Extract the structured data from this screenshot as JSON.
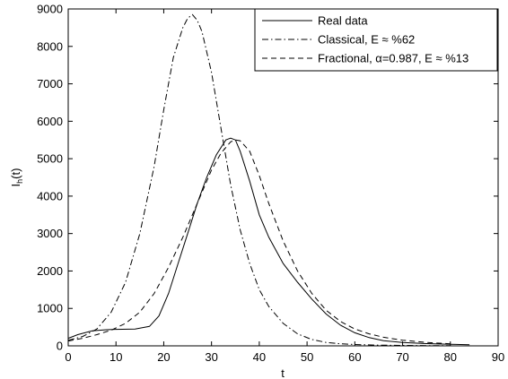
{
  "chart_data": {
    "type": "line",
    "xlabel": "t",
    "ylabel": "I_h(t)",
    "xlim": [
      0,
      90
    ],
    "ylim": [
      0,
      9000
    ],
    "xticks": [
      0,
      10,
      20,
      30,
      40,
      50,
      60,
      70,
      80,
      90
    ],
    "yticks": [
      0,
      1000,
      2000,
      3000,
      4000,
      5000,
      6000,
      7000,
      8000,
      9000
    ],
    "legend_position": "top-right",
    "series": [
      {
        "name": "Real data",
        "style": "solid",
        "x": [
          0,
          2,
          5,
          8,
          10,
          14,
          17,
          19,
          21,
          23,
          25,
          27,
          29,
          31,
          33,
          34,
          35,
          36,
          38,
          40,
          42,
          45,
          48,
          51,
          54,
          57,
          60,
          63,
          66,
          70,
          75,
          80,
          84
        ],
        "y": [
          200,
          300,
          400,
          430,
          440,
          450,
          520,
          800,
          1400,
          2200,
          3000,
          3800,
          4500,
          5100,
          5500,
          5550,
          5500,
          5200,
          4400,
          3500,
          2900,
          2200,
          1700,
          1250,
          850,
          550,
          350,
          220,
          140,
          90,
          60,
          40,
          30
        ]
      },
      {
        "name": "Classical, E ≈ %62",
        "style": "dashdot",
        "x": [
          0,
          3,
          6,
          9,
          12,
          15,
          18,
          20,
          22,
          24,
          25,
          26,
          27,
          28,
          30,
          32,
          34,
          36,
          38,
          40,
          42,
          45,
          48,
          51,
          54,
          57,
          60,
          65,
          70,
          75,
          80
        ],
        "y": [
          150,
          250,
          450,
          900,
          1700,
          3000,
          4800,
          6300,
          7700,
          8500,
          8750,
          8850,
          8700,
          8400,
          7300,
          5800,
          4300,
          3100,
          2200,
          1500,
          1050,
          600,
          320,
          170,
          90,
          55,
          35,
          20,
          12,
          8,
          5
        ]
      },
      {
        "name": "Fractional, α=0.987, E ≈ %13",
        "style": "dashed",
        "x": [
          0,
          3,
          6,
          9,
          12,
          15,
          18,
          21,
          24,
          27,
          30,
          32,
          34,
          35,
          36,
          38,
          40,
          42,
          45,
          48,
          51,
          54,
          57,
          60,
          63,
          66,
          70,
          75,
          80
        ],
        "y": [
          130,
          200,
          300,
          420,
          600,
          900,
          1400,
          2100,
          2900,
          3800,
          4700,
          5150,
          5450,
          5500,
          5480,
          5200,
          4550,
          3800,
          2800,
          2000,
          1400,
          950,
          650,
          450,
          320,
          230,
          150,
          90,
          55
        ]
      }
    ]
  }
}
